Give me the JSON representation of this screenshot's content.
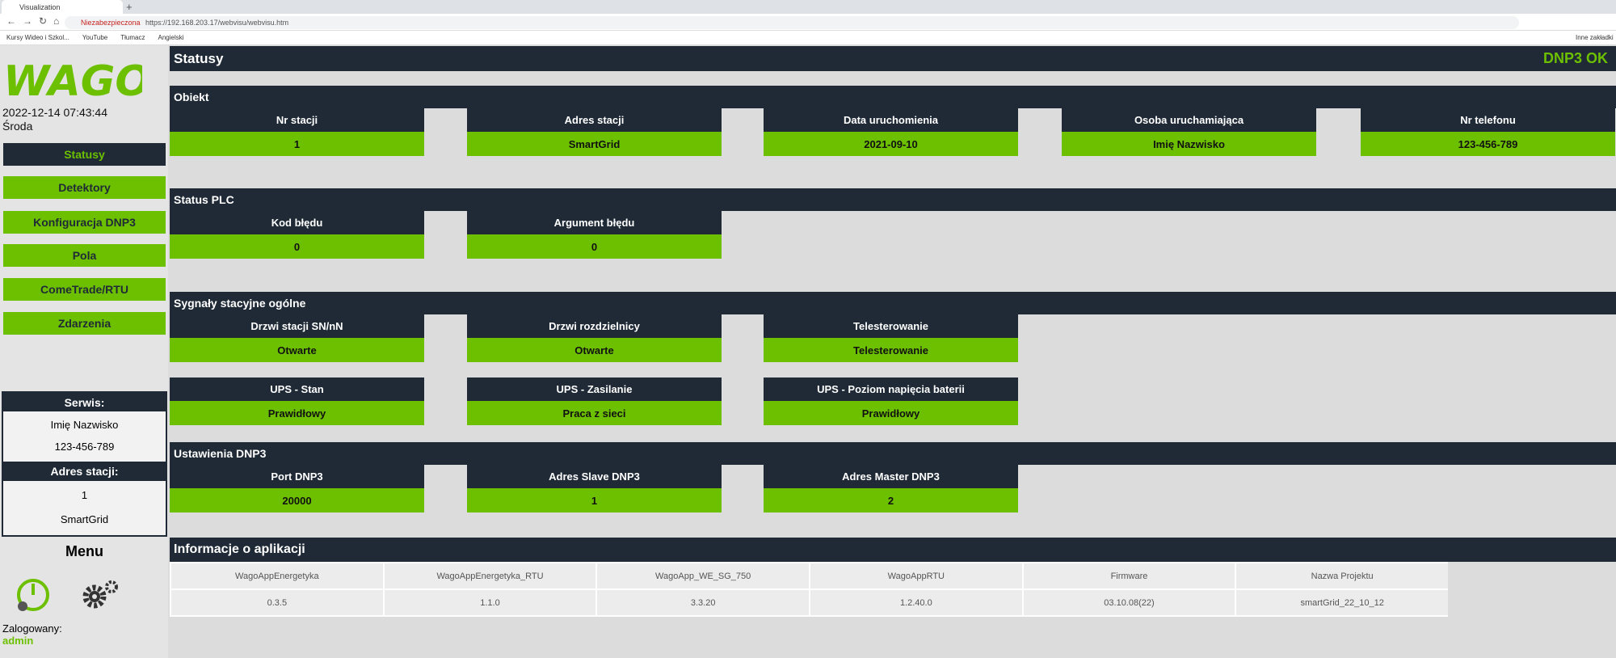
{
  "browser": {
    "tab_title": "Visualization",
    "security": "Niezabezpieczona",
    "url": "https://192.168.203.17/webvisu/webvisu.htm",
    "bookmarks": [
      "Kursy Wideo i Szkol...",
      "YouTube",
      "Tłumacz",
      "Angielski"
    ],
    "other_bookmarks": "Inne zakładki"
  },
  "sidebar": {
    "datetime": "2022-12-14 07:43:44",
    "day": "Środa",
    "nav": [
      "Statusy",
      "Detektory",
      "Konfiguracja DNP3",
      "Pola",
      "ComeTrade/RTU",
      "Zdarzenia"
    ],
    "service": {
      "title": "Serwis:",
      "name": "Imię Nazwisko",
      "phone": "123-456-789",
      "address_title": "Adres stacji:",
      "address_number": "1",
      "address_name": "SmartGrid"
    },
    "menu": "Menu",
    "logged_label": "Zalogowany:",
    "user": "admin"
  },
  "header": {
    "title": "Statusy",
    "status": "DNP3 OK"
  },
  "sections": [
    {
      "title": "Obiekt",
      "rows": [
        [
          {
            "label": "Nr stacji",
            "value": "1"
          },
          {
            "label": "Adres stacji",
            "value": "SmartGrid"
          },
          {
            "label": "Data uruchomienia",
            "value": "2021-09-10"
          },
          {
            "label": "Osoba uruchamiająca",
            "value": "Imię Nazwisko"
          },
          {
            "label": "Nr telefonu",
            "value": "123-456-789"
          }
        ]
      ]
    },
    {
      "title": "Status PLC",
      "rows": [
        [
          {
            "label": "Kod błędu",
            "value": "0"
          },
          {
            "label": "Argument błędu",
            "value": "0"
          }
        ]
      ]
    },
    {
      "title": "Sygnały stacyjne ogólne",
      "rows": [
        [
          {
            "label": "Drzwi stacji SN/nN",
            "value": "Otwarte"
          },
          {
            "label": "Drzwi rozdzielnicy",
            "value": "Otwarte"
          },
          {
            "label": "Telesterowanie",
            "value": "Telesterowanie"
          }
        ],
        [
          {
            "label": "UPS - Stan",
            "value": "Prawidłowy"
          },
          {
            "label": "UPS - Zasilanie",
            "value": "Praca z sieci"
          },
          {
            "label": "UPS - Poziom napięcia baterii",
            "value": "Prawidłowy"
          }
        ]
      ]
    },
    {
      "title": "Ustawienia DNP3",
      "rows": [
        [
          {
            "label": "Port DNP3",
            "value": "20000"
          },
          {
            "label": "Adres Slave DNP3",
            "value": "1"
          },
          {
            "label": "Adres Master DNP3",
            "value": "2"
          }
        ]
      ]
    }
  ],
  "app_info": {
    "title": "Informacje o aplikacji",
    "headers": [
      "WagoAppEnergetyka",
      "WagoAppEnergetyka_RTU",
      "WagoApp_WE_SG_750",
      "WagoAppRTU",
      "Firmware",
      "Nazwa Projektu"
    ],
    "values": [
      "0.3.5",
      "1.1.0",
      "3.3.20",
      "1.2.40.0",
      "03.10.08(22)",
      "smartGrid_22_10_12"
    ]
  }
}
